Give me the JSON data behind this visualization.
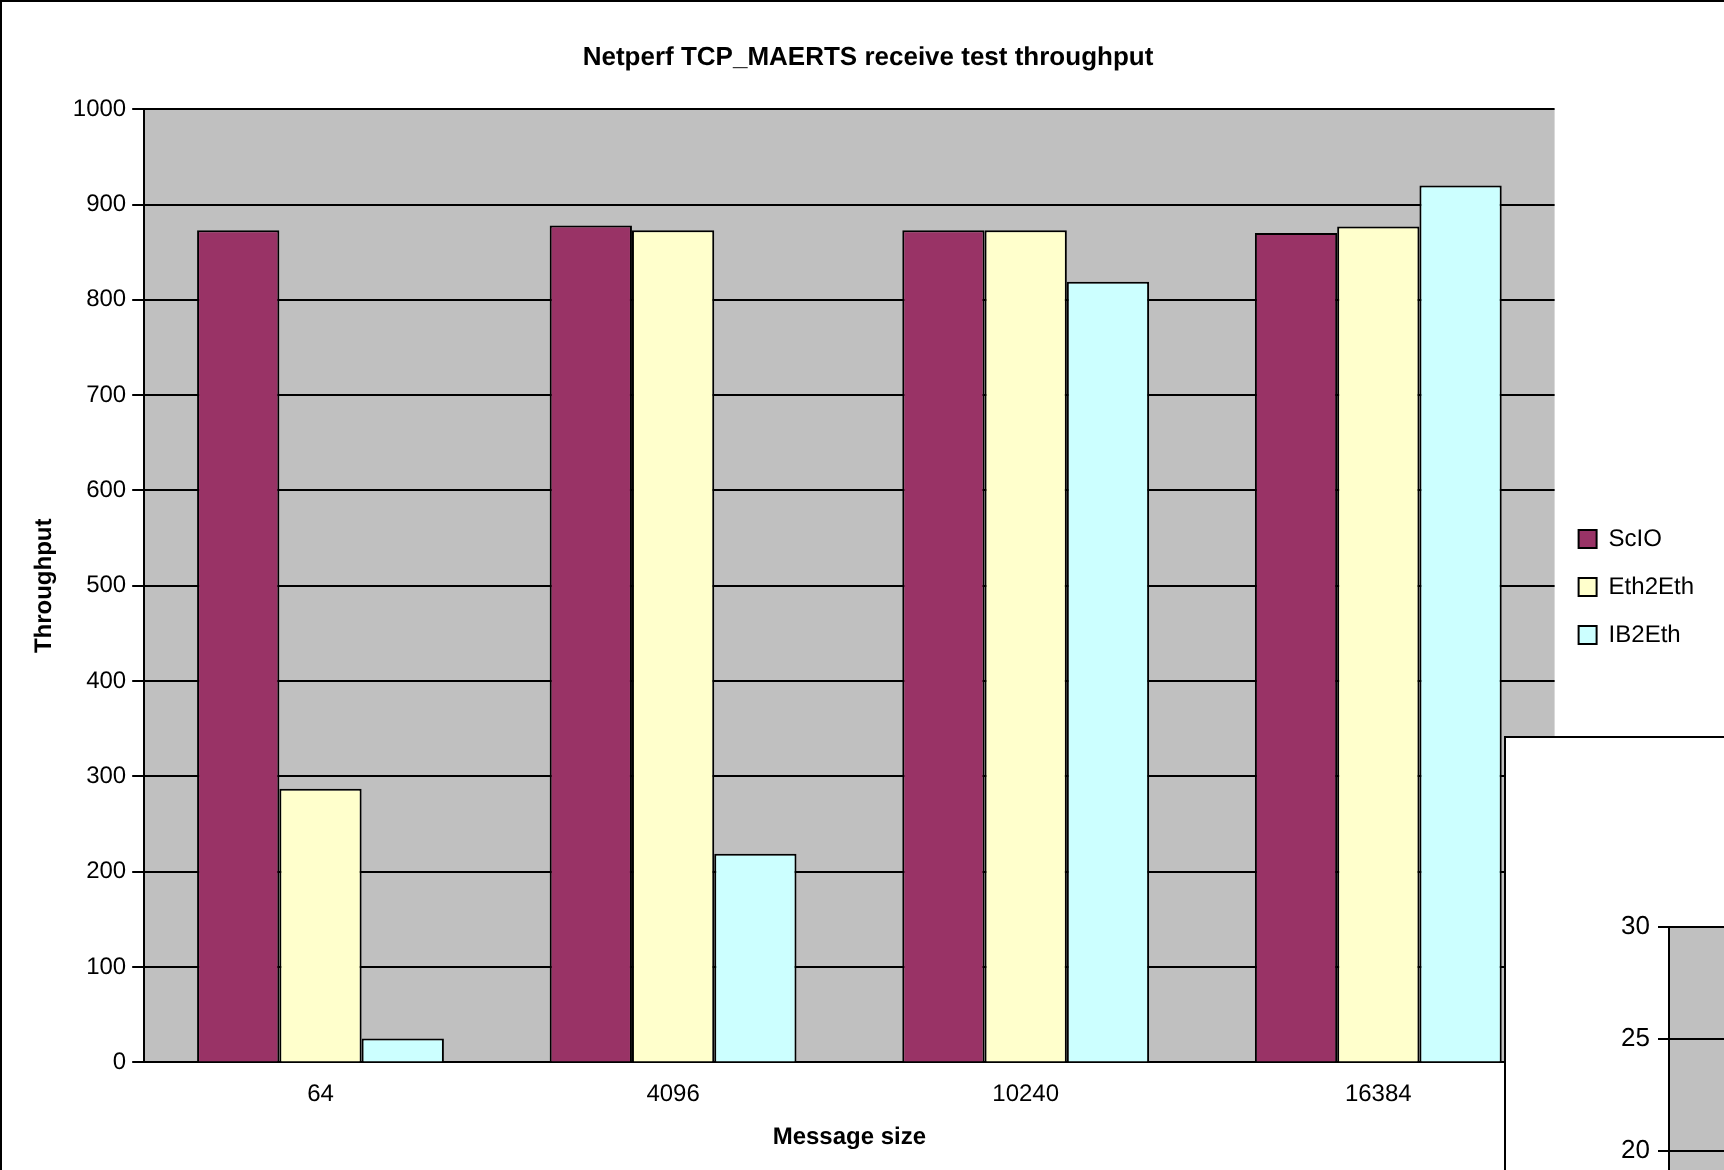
{
  "chart_data": [
    {
      "type": "bar",
      "title": "Netperf TCP_MAERTS receive test throughput",
      "xlabel": "Message size",
      "ylabel": "Throughput",
      "categories": [
        "64",
        "4096",
        "10240",
        "16384"
      ],
      "series": [
        {
          "name": "ScIO",
          "color": "#993366",
          "values": [
            873,
            878,
            873,
            870
          ]
        },
        {
          "name": "Eth2Eth",
          "color": "#ffffcc",
          "values": [
            287,
            873,
            873,
            877
          ]
        },
        {
          "name": "IB2Eth",
          "color": "#ccffff",
          "values": [
            25,
            219,
            819,
            920
          ]
        }
      ],
      "ylim": [
        0,
        1000
      ],
      "yticks": [
        0,
        100,
        200,
        300,
        400,
        500,
        600,
        700,
        800,
        900,
        1000
      ],
      "grid": "y",
      "legend": "right"
    },
    {
      "type": "other",
      "annotations": [
        "30",
        "25",
        "20"
      ]
    }
  ]
}
